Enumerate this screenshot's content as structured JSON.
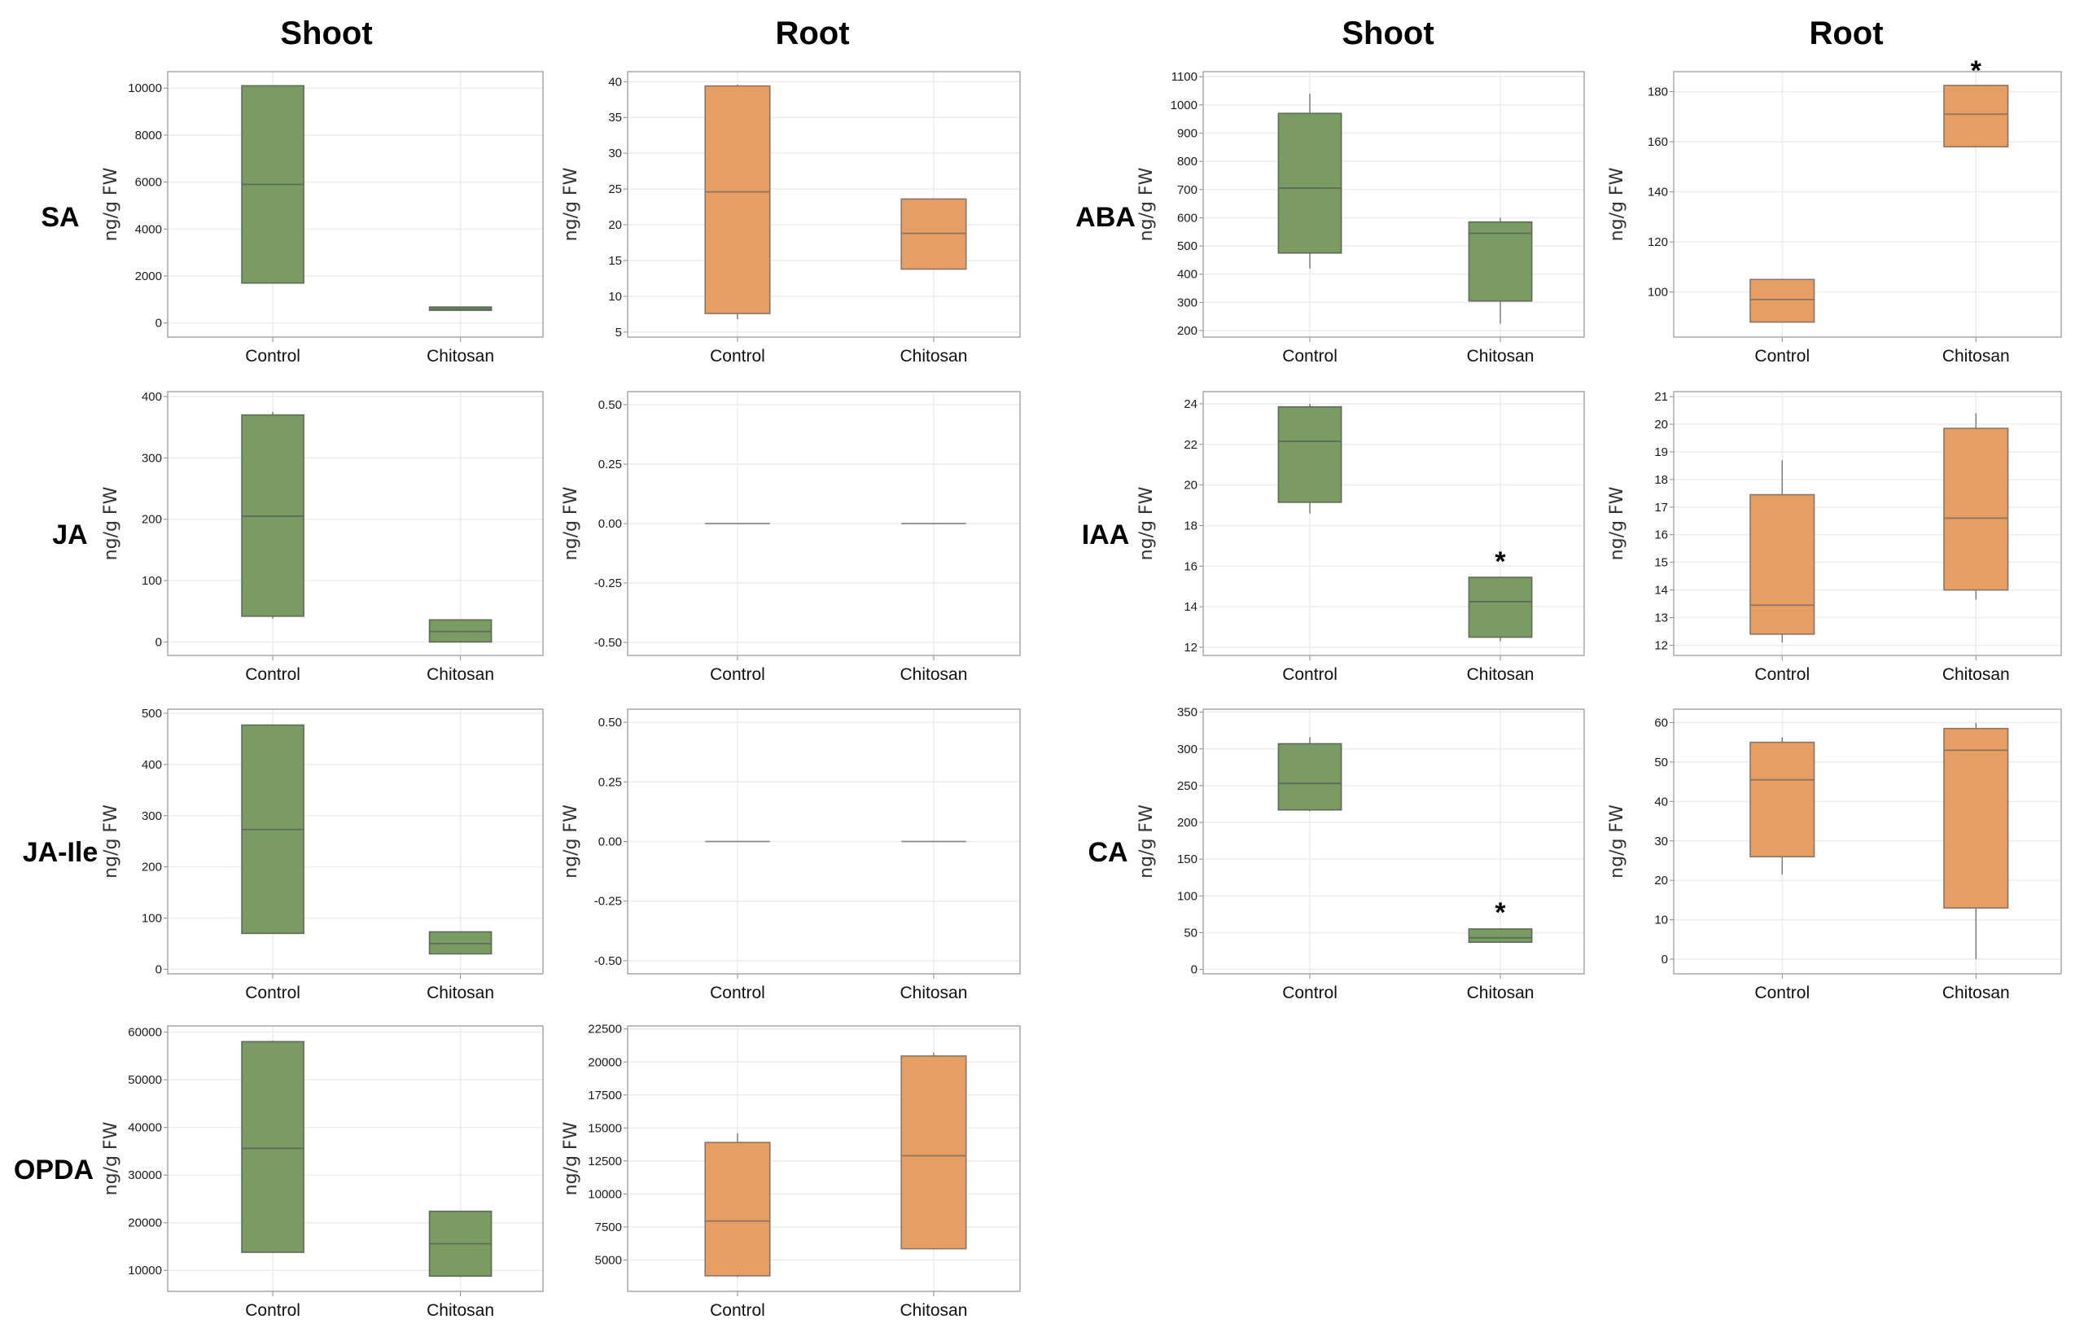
{
  "colors": {
    "shoot": "#7a9b62",
    "root": "#e79e63",
    "box_edge": "#5f6b5a",
    "root_edge": "#8a7566",
    "grid": "#ececec",
    "frame": "#a8a8a8"
  },
  "column_titles": [
    "Shoot",
    "Root",
    "Shoot",
    "Root"
  ],
  "row_titles_left": [
    "SA",
    "JA",
    "JA-Ile",
    "OPDA"
  ],
  "row_titles_right": [
    "ABA",
    "IAA",
    "CA"
  ],
  "chart_data": [
    {
      "type": "box",
      "id": "SA-shoot",
      "hormone": "SA",
      "tissue": "Shoot",
      "ylabel": "ng/g FW",
      "categories": [
        "Control",
        "Chitosan"
      ],
      "yticks": [
        0,
        2000,
        4000,
        6000,
        8000,
        10000
      ],
      "tick_labels": [
        "0",
        "2000",
        "4000",
        "6000",
        "8000",
        "10000"
      ],
      "ylim": [
        -600,
        10700
      ],
      "series": [
        {
          "name": "Control",
          "whisker_low": 1700,
          "q1": 1700,
          "median": 5900,
          "q3": 10100,
          "whisker_high": 10100
        },
        {
          "name": "Chitosan",
          "whisker_low": 540,
          "q1": 540,
          "median": 600,
          "q3": 680,
          "whisker_high": 680
        }
      ],
      "significance": []
    },
    {
      "type": "box",
      "id": "SA-root",
      "hormone": "SA",
      "tissue": "Root",
      "ylabel": "ng/g FW",
      "categories": [
        "Control",
        "Chitosan"
      ],
      "yticks": [
        5,
        10,
        15,
        20,
        25,
        30,
        35,
        40
      ],
      "tick_labels": [
        "5",
        "10",
        "15",
        "20",
        "25",
        "30",
        "35",
        "40"
      ],
      "ylim": [
        4.3,
        41.4
      ],
      "series": [
        {
          "name": "Control",
          "whisker_low": 6.8,
          "q1": 7.6,
          "median": 24.6,
          "q3": 39.4,
          "whisker_high": 39.6
        },
        {
          "name": "Chitosan",
          "whisker_low": 13.7,
          "q1": 13.8,
          "median": 18.8,
          "q3": 23.6,
          "whisker_high": 23.7
        }
      ],
      "significance": []
    },
    {
      "type": "box",
      "id": "ABA-shoot",
      "hormone": "ABA",
      "tissue": "Shoot",
      "ylabel": "ng/g FW",
      "categories": [
        "Control",
        "Chitosan"
      ],
      "yticks": [
        200,
        300,
        400,
        500,
        600,
        700,
        800,
        900,
        1000,
        1100
      ],
      "tick_labels": [
        "200",
        "300",
        "400",
        "500",
        "600",
        "700",
        "800",
        "900",
        "1000",
        "1100"
      ],
      "ylim": [
        177,
        1118
      ],
      "series": [
        {
          "name": "Control",
          "whisker_low": 420,
          "q1": 475,
          "median": 705,
          "q3": 970,
          "whisker_high": 1040
        },
        {
          "name": "Chitosan",
          "whisker_low": 225,
          "q1": 305,
          "median": 545,
          "q3": 585,
          "whisker_high": 600
        }
      ],
      "significance": []
    },
    {
      "type": "box",
      "id": "ABA-root",
      "hormone": "ABA",
      "tissue": "Root",
      "ylabel": "ng/g FW",
      "categories": [
        "Control",
        "Chitosan"
      ],
      "yticks": [
        100,
        120,
        140,
        160,
        180
      ],
      "tick_labels": [
        "100",
        "120",
        "140",
        "160",
        "180"
      ],
      "ylim": [
        82,
        188
      ],
      "series": [
        {
          "name": "Control",
          "whisker_low": 88,
          "q1": 88,
          "median": 97,
          "q3": 105,
          "whisker_high": 105
        },
        {
          "name": "Chitosan",
          "whisker_low": 158,
          "q1": 158,
          "median": 171,
          "q3": 182.5,
          "whisker_high": 182.5
        }
      ],
      "significance": [
        "Chitosan"
      ]
    },
    {
      "type": "box",
      "id": "JA-shoot",
      "hormone": "JA",
      "tissue": "Shoot",
      "ylabel": "ng/g FW",
      "categories": [
        "Control",
        "Chitosan"
      ],
      "yticks": [
        0,
        100,
        200,
        300,
        400
      ],
      "tick_labels": [
        "0",
        "100",
        "200",
        "300",
        "400"
      ],
      "ylim": [
        -22,
        408
      ],
      "series": [
        {
          "name": "Control",
          "whisker_low": 38,
          "q1": 42,
          "median": 205,
          "q3": 370,
          "whisker_high": 375
        },
        {
          "name": "Chitosan",
          "whisker_low": 0,
          "q1": 0,
          "median": 17,
          "q3": 36,
          "whisker_high": 36
        }
      ],
      "significance": []
    },
    {
      "type": "box",
      "id": "JA-root",
      "hormone": "JA",
      "tissue": "Root",
      "ylabel": "ng/g FW",
      "categories": [
        "Control",
        "Chitosan"
      ],
      "yticks": [
        -0.5,
        -0.25,
        0,
        0.25,
        0.5
      ],
      "tick_labels": [
        "-0.50",
        "-0.25",
        "0.00",
        "0.25",
        "0.50"
      ],
      "ylim": [
        -0.555,
        0.555
      ],
      "series": [
        {
          "name": "Control",
          "whisker_low": 0,
          "q1": 0,
          "median": 0,
          "q3": 0,
          "whisker_high": 0
        },
        {
          "name": "Chitosan",
          "whisker_low": 0,
          "q1": 0,
          "median": 0,
          "q3": 0,
          "whisker_high": 0
        }
      ],
      "significance": []
    },
    {
      "type": "box",
      "id": "IAA-shoot",
      "hormone": "IAA",
      "tissue": "Shoot",
      "ylabel": "ng/g FW",
      "categories": [
        "Control",
        "Chitosan"
      ],
      "yticks": [
        12,
        14,
        16,
        18,
        20,
        22,
        24
      ],
      "tick_labels": [
        "12",
        "14",
        "16",
        "18",
        "20",
        "22",
        "24"
      ],
      "ylim": [
        11.6,
        24.6
      ],
      "series": [
        {
          "name": "Control",
          "whisker_low": 18.6,
          "q1": 19.15,
          "median": 22.15,
          "q3": 23.85,
          "whisker_high": 24.0
        },
        {
          "name": "Chitosan",
          "whisker_low": 12.3,
          "q1": 12.5,
          "median": 14.25,
          "q3": 15.45,
          "whisker_high": 15.45
        }
      ],
      "significance": [
        "Chitosan"
      ]
    },
    {
      "type": "box",
      "id": "IAA-root",
      "hormone": "IAA",
      "tissue": "Root",
      "ylabel": "ng/g FW",
      "categories": [
        "Control",
        "Chitosan"
      ],
      "yticks": [
        12,
        13,
        14,
        15,
        16,
        17,
        18,
        19,
        20,
        21
      ],
      "tick_labels": [
        "12",
        "13",
        "14",
        "15",
        "16",
        "17",
        "18",
        "19",
        "20",
        "21"
      ],
      "ylim": [
        11.63,
        21.18
      ],
      "series": [
        {
          "name": "Control",
          "whisker_low": 12.1,
          "q1": 12.4,
          "median": 13.45,
          "q3": 17.45,
          "whisker_high": 18.7
        },
        {
          "name": "Chitosan",
          "whisker_low": 13.65,
          "q1": 14.0,
          "median": 16.6,
          "q3": 19.85,
          "whisker_high": 20.4
        }
      ],
      "significance": []
    },
    {
      "type": "box",
      "id": "JAIle-shoot",
      "hormone": "JA-Ile",
      "tissue": "Shoot",
      "ylabel": "ng/g FW",
      "categories": [
        "Control",
        "Chitosan"
      ],
      "yticks": [
        0,
        100,
        200,
        300,
        400,
        500
      ],
      "tick_labels": [
        "0",
        "100",
        "200",
        "300",
        "400",
        "500"
      ],
      "ylim": [
        -9,
        508
      ],
      "series": [
        {
          "name": "Control",
          "whisker_low": 70,
          "q1": 70,
          "median": 273,
          "q3": 477,
          "whisker_high": 477
        },
        {
          "name": "Chitosan",
          "whisker_low": 30,
          "q1": 30,
          "median": 50,
          "q3": 73,
          "whisker_high": 73
        }
      ],
      "significance": []
    },
    {
      "type": "box",
      "id": "JAIle-root",
      "hormone": "JA-Ile",
      "tissue": "Root",
      "ylabel": "ng/g FW",
      "categories": [
        "Control",
        "Chitosan"
      ],
      "yticks": [
        -0.5,
        -0.25,
        0,
        0.25,
        0.5
      ],
      "tick_labels": [
        "-0.50",
        "-0.25",
        "0.00",
        "0.25",
        "0.50"
      ],
      "ylim": [
        -0.555,
        0.555
      ],
      "series": [
        {
          "name": "Control",
          "whisker_low": 0,
          "q1": 0,
          "median": 0,
          "q3": 0,
          "whisker_high": 0
        },
        {
          "name": "Chitosan",
          "whisker_low": 0,
          "q1": 0,
          "median": 0,
          "q3": 0,
          "whisker_high": 0
        }
      ],
      "significance": []
    },
    {
      "type": "box",
      "id": "CA-shoot",
      "hormone": "CA",
      "tissue": "Shoot",
      "ylabel": "ng/g FW",
      "categories": [
        "Control",
        "Chitosan"
      ],
      "yticks": [
        0,
        50,
        100,
        150,
        200,
        250,
        300,
        350
      ],
      "tick_labels": [
        "0",
        "50",
        "100",
        "150",
        "200",
        "250",
        "300",
        "350"
      ],
      "ylim": [
        -6,
        354
      ],
      "series": [
        {
          "name": "Control",
          "whisker_low": 215,
          "q1": 217,
          "median": 253,
          "q3": 307,
          "whisker_high": 316
        },
        {
          "name": "Chitosan",
          "whisker_low": 37,
          "q1": 37,
          "median": 43,
          "q3": 55,
          "whisker_high": 56
        }
      ],
      "significance": [
        "Chitosan"
      ]
    },
    {
      "type": "box",
      "id": "CA-root",
      "hormone": "CA",
      "tissue": "Root",
      "ylabel": "ng/g FW",
      "categories": [
        "Control",
        "Chitosan"
      ],
      "yticks": [
        0,
        10,
        20,
        30,
        40,
        50,
        60
      ],
      "tick_labels": [
        "0",
        "10",
        "20",
        "30",
        "40",
        "50",
        "60"
      ],
      "ylim": [
        -3.7,
        63.4
      ],
      "series": [
        {
          "name": "Control",
          "whisker_low": 21.5,
          "q1": 26,
          "median": 45.5,
          "q3": 55,
          "whisker_high": 56.2
        },
        {
          "name": "Chitosan",
          "whisker_low": 0,
          "q1": 13,
          "median": 53,
          "q3": 58.5,
          "whisker_high": 59.9
        }
      ],
      "significance": []
    },
    {
      "type": "box",
      "id": "OPDA-shoot",
      "hormone": "OPDA",
      "tissue": "Shoot",
      "ylabel": "ng/g FW",
      "categories": [
        "Control",
        "Chitosan"
      ],
      "yticks": [
        10000,
        20000,
        30000,
        40000,
        50000,
        60000
      ],
      "tick_labels": [
        "10000",
        "20000",
        "30000",
        "40000",
        "50000",
        "60000"
      ],
      "ylim": [
        5600,
        61300
      ],
      "series": [
        {
          "name": "Control",
          "whisker_low": 13800,
          "q1": 13800,
          "median": 35600,
          "q3": 58000,
          "whisker_high": 58200
        },
        {
          "name": "Chitosan",
          "whisker_low": 8600,
          "q1": 8800,
          "median": 15600,
          "q3": 22400,
          "whisker_high": 22500
        }
      ],
      "significance": []
    },
    {
      "type": "box",
      "id": "OPDA-root",
      "hormone": "OPDA",
      "tissue": "Root",
      "ylabel": "ng/g FW",
      "categories": [
        "Control",
        "Chitosan"
      ],
      "yticks": [
        5000,
        7500,
        10000,
        12500,
        15000,
        17500,
        20000,
        22500
      ],
      "tick_labels": [
        "5000",
        "7500",
        "10000",
        "12500",
        "15000",
        "17500",
        "20000",
        "22500"
      ],
      "ylim": [
        2620,
        22730
      ],
      "series": [
        {
          "name": "Control",
          "whisker_low": 3700,
          "q1": 3800,
          "median": 7950,
          "q3": 13900,
          "whisker_high": 14600
        },
        {
          "name": "Chitosan",
          "whisker_low": 5800,
          "q1": 5850,
          "median": 12900,
          "q3": 20450,
          "whisker_high": 20700
        }
      ],
      "significance": []
    }
  ]
}
